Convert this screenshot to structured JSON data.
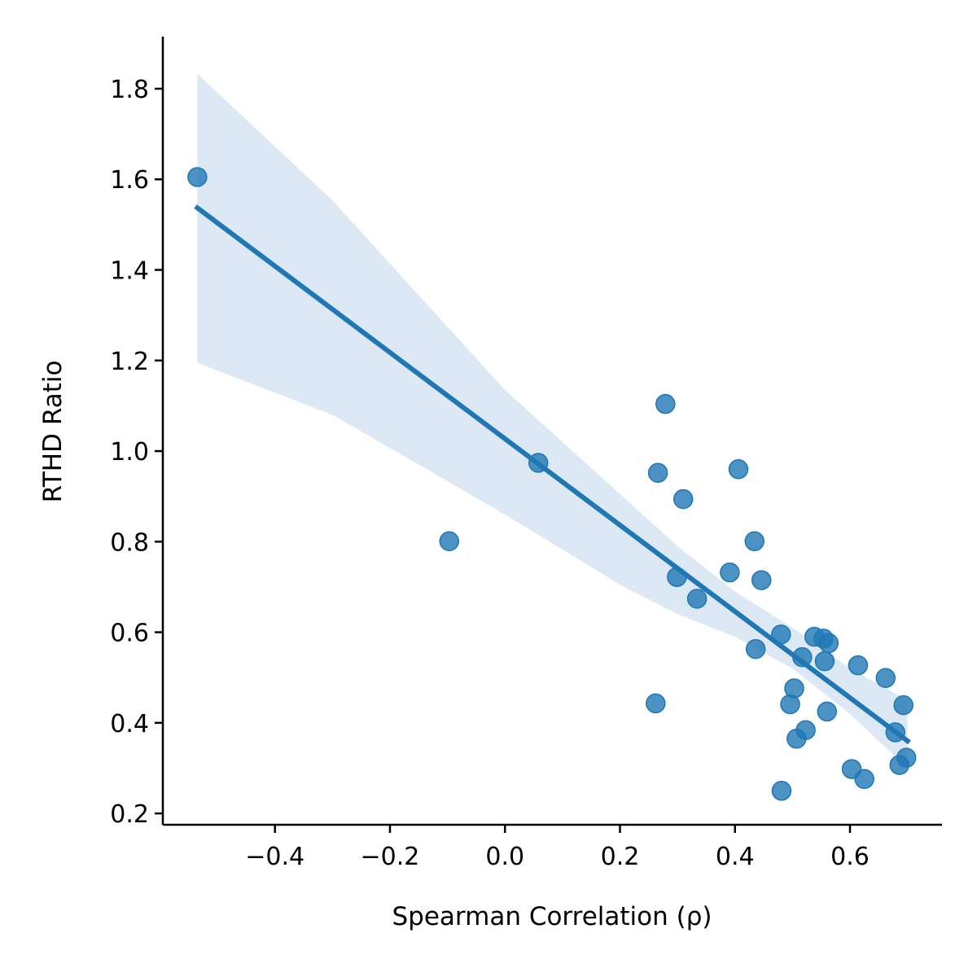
{
  "chart_data": {
    "type": "scatter",
    "title": "",
    "xlabel": "Spearman Correlation (ρ)",
    "ylabel": "RTHD Ratio",
    "xlim": [
      -0.595,
      0.76
    ],
    "ylim": [
      0.175,
      1.915
    ],
    "xticks": [
      -0.4,
      -0.2,
      0.0,
      0.2,
      0.4,
      0.6
    ],
    "xtick_labels": [
      "−0.4",
      "−0.2",
      "0.0",
      "0.2",
      "0.4",
      "0.6"
    ],
    "yticks": [
      0.2,
      0.4,
      0.6,
      0.8,
      1.0,
      1.2,
      1.4,
      1.6,
      1.8
    ],
    "ytick_labels": [
      "0.2",
      "0.4",
      "0.6",
      "0.8",
      "1.0",
      "1.2",
      "1.4",
      "1.6",
      "1.8"
    ],
    "grid": false,
    "point_color": "#1f77b4",
    "band_color": "#dce9f4",
    "points": [
      {
        "x": -0.535,
        "y": 1.605
      },
      {
        "x": -0.097,
        "y": 0.801
      },
      {
        "x": 0.058,
        "y": 0.974
      },
      {
        "x": 0.262,
        "y": 0.443
      },
      {
        "x": 0.266,
        "y": 0.952
      },
      {
        "x": 0.279,
        "y": 1.104
      },
      {
        "x": 0.299,
        "y": 0.722
      },
      {
        "x": 0.31,
        "y": 0.894
      },
      {
        "x": 0.334,
        "y": 0.674
      },
      {
        "x": 0.391,
        "y": 0.732
      },
      {
        "x": 0.406,
        "y": 0.96
      },
      {
        "x": 0.434,
        "y": 0.801
      },
      {
        "x": 0.436,
        "y": 0.563
      },
      {
        "x": 0.446,
        "y": 0.715
      },
      {
        "x": 0.48,
        "y": 0.595
      },
      {
        "x": 0.481,
        "y": 0.25
      },
      {
        "x": 0.496,
        "y": 0.441
      },
      {
        "x": 0.503,
        "y": 0.476
      },
      {
        "x": 0.507,
        "y": 0.365
      },
      {
        "x": 0.517,
        "y": 0.545
      },
      {
        "x": 0.523,
        "y": 0.384
      },
      {
        "x": 0.538,
        "y": 0.59
      },
      {
        "x": 0.554,
        "y": 0.586
      },
      {
        "x": 0.556,
        "y": 0.536
      },
      {
        "x": 0.56,
        "y": 0.425
      },
      {
        "x": 0.563,
        "y": 0.576
      },
      {
        "x": 0.603,
        "y": 0.298
      },
      {
        "x": 0.614,
        "y": 0.527
      },
      {
        "x": 0.625,
        "y": 0.276
      },
      {
        "x": 0.662,
        "y": 0.499
      },
      {
        "x": 0.679,
        "y": 0.379
      },
      {
        "x": 0.686,
        "y": 0.307
      },
      {
        "x": 0.693,
        "y": 0.439
      },
      {
        "x": 0.698,
        "y": 0.323
      }
    ],
    "regression": {
      "x_range": [
        -0.535,
        0.7
      ],
      "y_at_ends": [
        1.537,
        0.36
      ]
    },
    "confidence_band": {
      "x": [
        -0.535,
        -0.3,
        0.0,
        0.2,
        0.3,
        0.4,
        0.5,
        0.6,
        0.7
      ],
      "upper": [
        1.833,
        1.553,
        1.135,
        0.905,
        0.79,
        0.69,
        0.61,
        0.52,
        0.45
      ],
      "lower": [
        1.195,
        1.08,
        0.86,
        0.705,
        0.64,
        0.59,
        0.52,
        0.42,
        0.3
      ]
    }
  }
}
